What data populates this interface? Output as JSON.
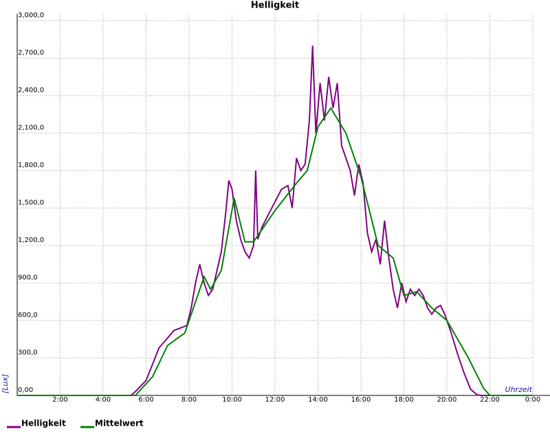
{
  "chart_data": {
    "type": "line",
    "title": "Helligkeit",
    "ylabel": "[Lux]",
    "xlabel": "Uhrzeit",
    "xlim": [
      0,
      24
    ],
    "ylim": [
      0,
      3000
    ],
    "xticks": [
      {
        "value": 2,
        "label": "2:00"
      },
      {
        "value": 4,
        "label": "4:00"
      },
      {
        "value": 6,
        "label": "6:00"
      },
      {
        "value": 8,
        "label": "8:00"
      },
      {
        "value": 10,
        "label": "10:00"
      },
      {
        "value": 12,
        "label": "12:00"
      },
      {
        "value": 14,
        "label": "14:00"
      },
      {
        "value": 16,
        "label": "16:00"
      },
      {
        "value": 18,
        "label": "18:00"
      },
      {
        "value": 20,
        "label": "20:00"
      },
      {
        "value": 22,
        "label": "22:00"
      },
      {
        "value": 24,
        "label": "0:00"
      }
    ],
    "yticks": [
      {
        "value": 0,
        "label": "0,00"
      },
      {
        "value": 300,
        "label": "300,0"
      },
      {
        "value": 600,
        "label": "600,0"
      },
      {
        "value": 900,
        "label": "900,0"
      },
      {
        "value": 1200,
        "label": "1,200,0"
      },
      {
        "value": 1500,
        "label": "1,500,0"
      },
      {
        "value": 1800,
        "label": "1,800,0"
      },
      {
        "value": 2100,
        "label": "2,100,0"
      },
      {
        "value": 2400,
        "label": "2,400,0"
      },
      {
        "value": 2700,
        "label": "2,700,0"
      },
      {
        "value": 3000,
        "label": "3,000,0"
      }
    ],
    "grid": true,
    "legend": "bottom-left",
    "series": [
      {
        "name": "Helligkeit",
        "color": "#800080",
        "x": [
          0,
          5.3,
          5.5,
          6,
          6.3,
          6.6,
          7,
          7.3,
          7.6,
          7.9,
          8.1,
          8.3,
          8.5,
          8.7,
          8.9,
          9.1,
          9.3,
          9.5,
          9.7,
          9.85,
          10,
          10.2,
          10.4,
          10.6,
          10.8,
          11,
          11.1,
          11.2,
          11.4,
          11.7,
          12,
          12.3,
          12.6,
          12.8,
          13,
          13.2,
          13.4,
          13.6,
          13.75,
          13.9,
          14.1,
          14.3,
          14.5,
          14.7,
          14.9,
          15.1,
          15.3,
          15.5,
          15.7,
          15.9,
          16.1,
          16.3,
          16.5,
          16.7,
          16.9,
          17.1,
          17.3,
          17.5,
          17.7,
          17.9,
          18.1,
          18.3,
          18.5,
          18.7,
          18.9,
          19.1,
          19.3,
          19.5,
          19.7,
          19.9,
          20.2,
          20.5,
          20.8,
          21.1,
          21.4,
          21.6,
          24
        ],
        "values": [
          0,
          0,
          30,
          120,
          250,
          380,
          460,
          520,
          540,
          560,
          700,
          900,
          1050,
          900,
          800,
          850,
          1000,
          1150,
          1450,
          1720,
          1650,
          1400,
          1250,
          1150,
          1100,
          1200,
          1800,
          1250,
          1350,
          1450,
          1550,
          1650,
          1680,
          1500,
          1900,
          1800,
          1850,
          2200,
          2800,
          2100,
          2500,
          2200,
          2550,
          2300,
          2500,
          2000,
          1900,
          1800,
          1600,
          1850,
          1700,
          1300,
          1150,
          1250,
          1050,
          1400,
          1100,
          850,
          700,
          900,
          750,
          850,
          800,
          850,
          800,
          700,
          650,
          700,
          720,
          650,
          500,
          330,
          180,
          50,
          5,
          0,
          0
        ]
      },
      {
        "name": "Mittelwert",
        "color": "#008000",
        "x": [
          0,
          5.5,
          6.3,
          7,
          7.8,
          8.7,
          9,
          9.5,
          10.1,
          10.6,
          11,
          12,
          13,
          13.5,
          14,
          14.6,
          15.3,
          16,
          16.8,
          17.5,
          18,
          18.6,
          19.3,
          20,
          21,
          21.7,
          22,
          24
        ],
        "values": [
          0,
          0,
          150,
          400,
          500,
          950,
          850,
          1000,
          1580,
          1230,
          1230,
          1480,
          1700,
          1800,
          2150,
          2300,
          2100,
          1750,
          1200,
          1100,
          800,
          830,
          700,
          600,
          300,
          60,
          0,
          0
        ]
      }
    ]
  }
}
